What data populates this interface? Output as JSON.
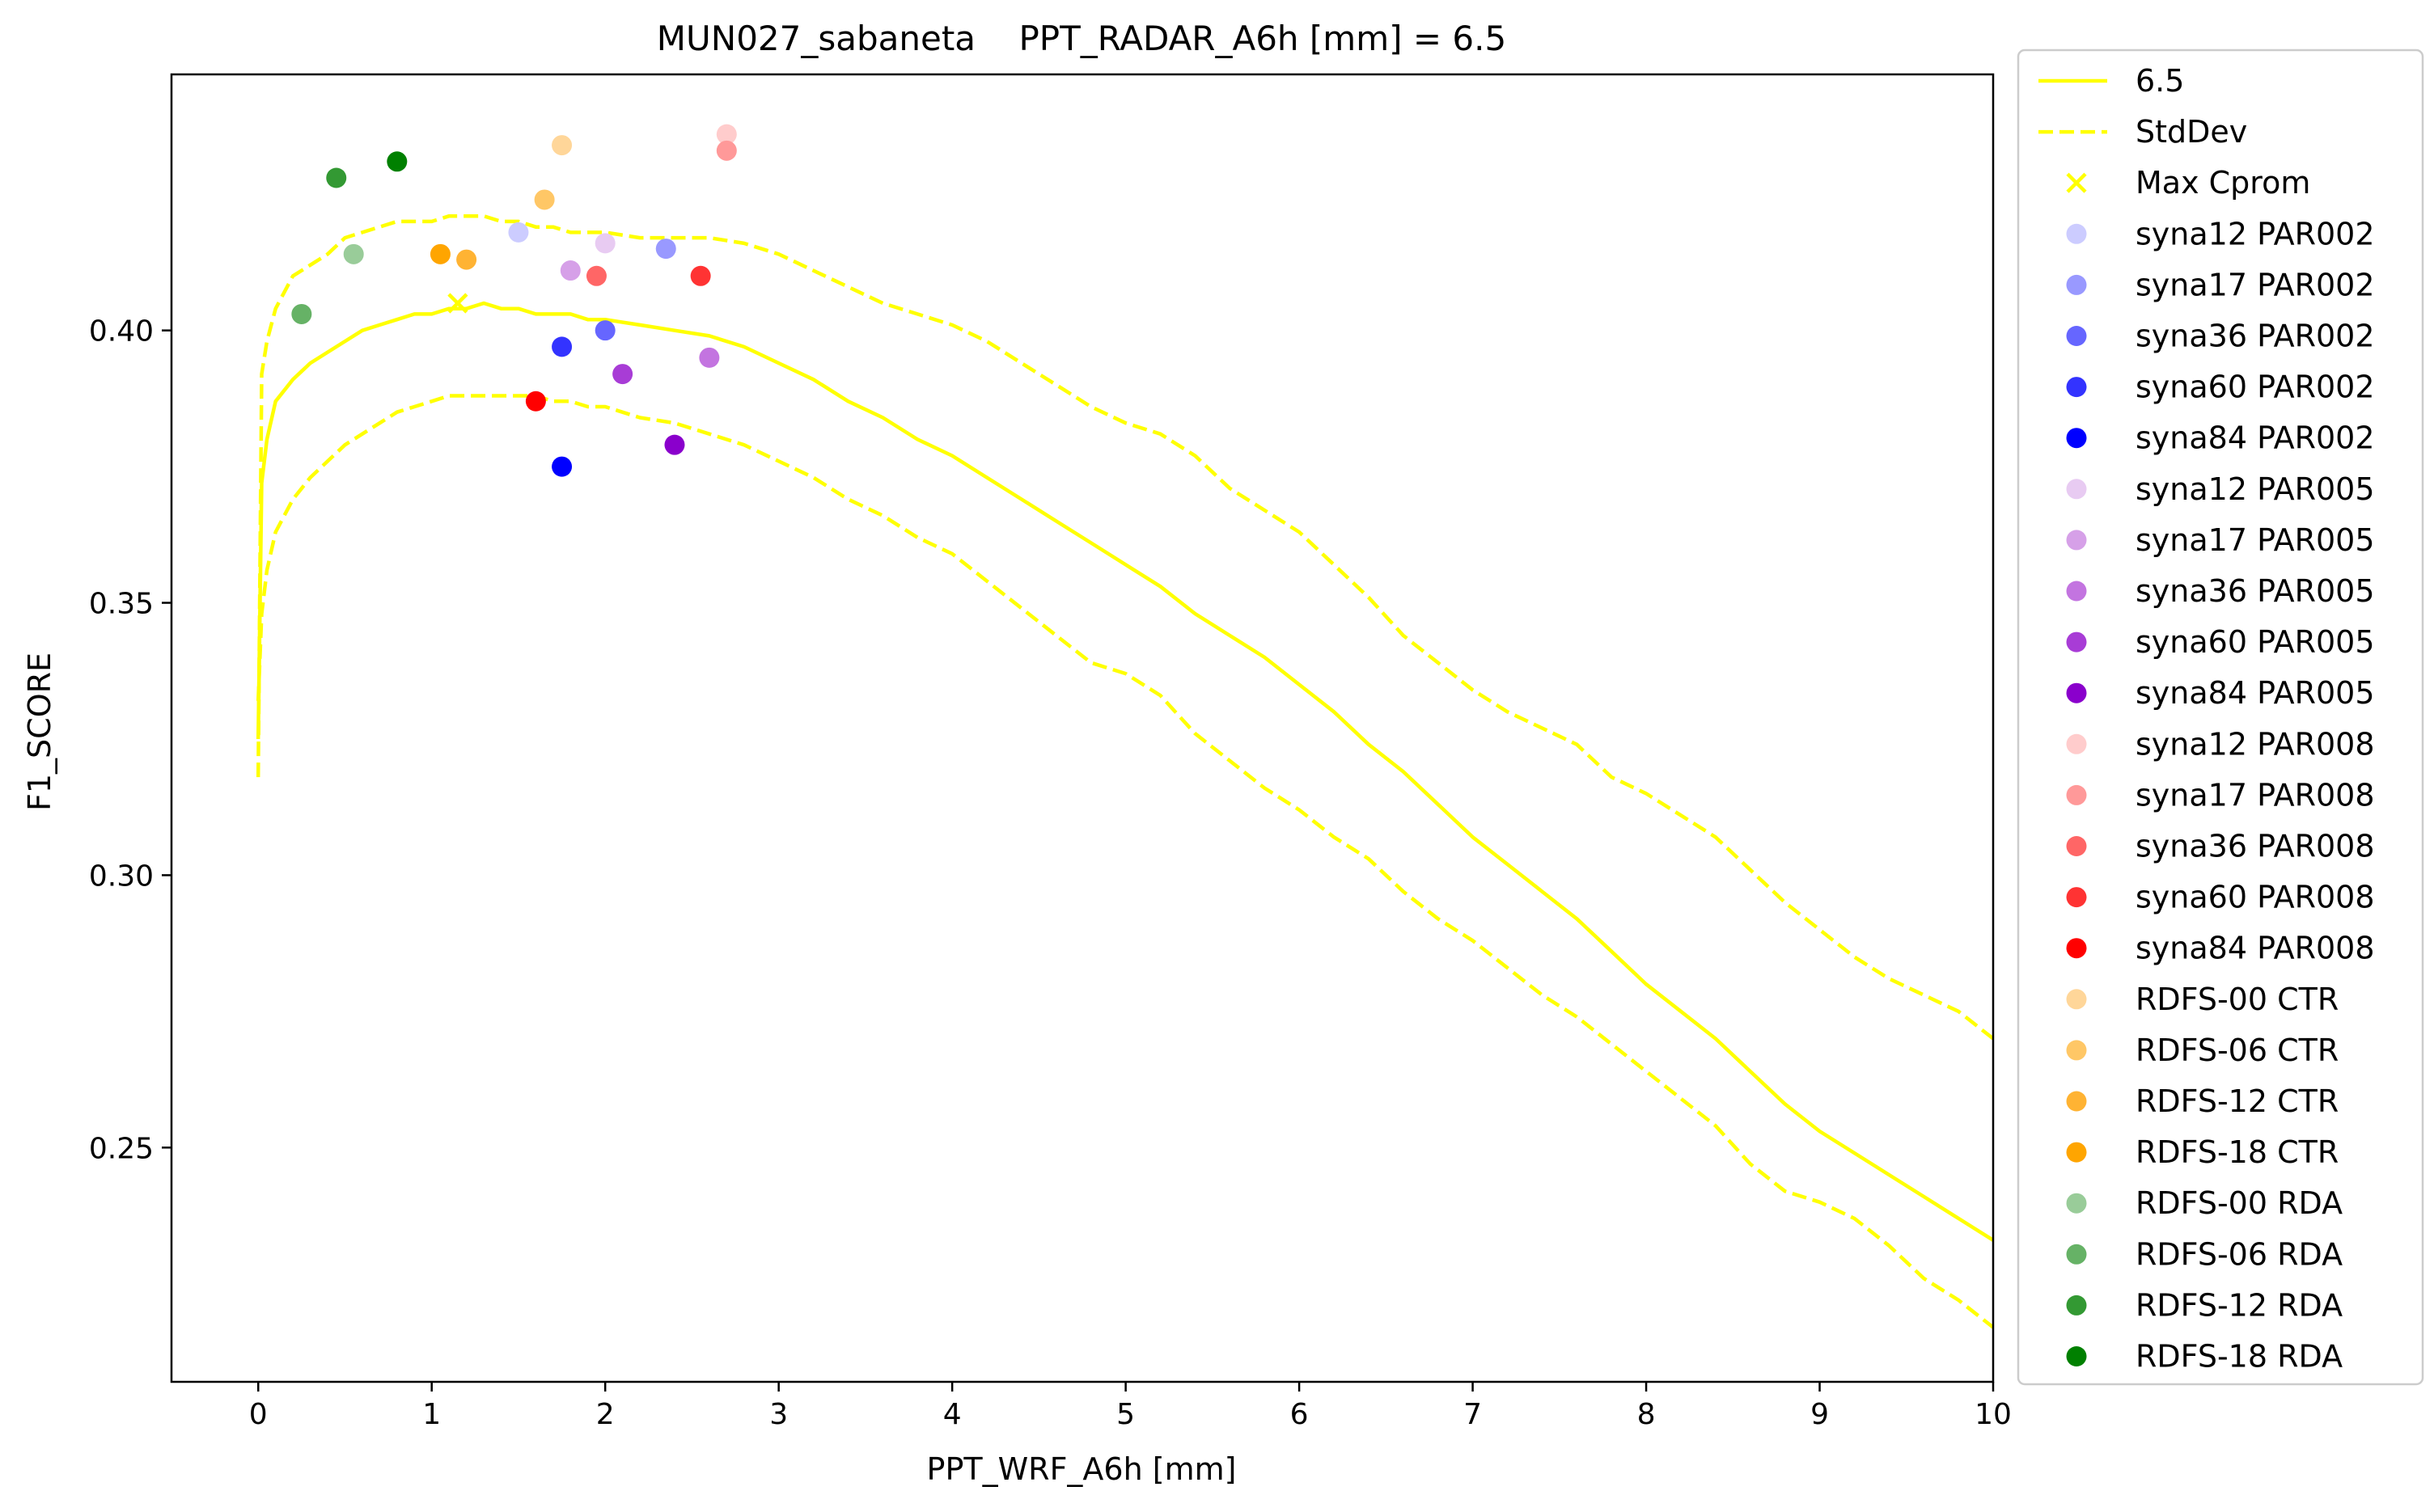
{
  "chart_data": {
    "type": "line",
    "title": "MUN027_sabaneta    PPT_RADAR_A6h [mm] = 6.5",
    "xlabel": "PPT_WRF_A6h [mm]",
    "ylabel": "F1_SCORE",
    "xlim": [
      -0.5,
      10
    ],
    "ylim": [
      0.207,
      0.447
    ],
    "xticks": [
      0,
      1,
      2,
      3,
      4,
      5,
      6,
      7,
      8,
      9,
      10
    ],
    "yticks": [
      0.25,
      0.3,
      0.35,
      0.4
    ],
    "xtick_labels": [
      "0",
      "1",
      "2",
      "3",
      "4",
      "5",
      "6",
      "7",
      "8",
      "9",
      "10"
    ],
    "ytick_labels": [
      "0.25",
      "0.30",
      "0.35",
      "0.40"
    ],
    "grid": false,
    "legend_position": "outside right",
    "lines": [
      {
        "name": "6.5",
        "color": "#ffff00",
        "style": "solid",
        "x": [
          0,
          0.02,
          0.05,
          0.1,
          0.2,
          0.3,
          0.4,
          0.5,
          0.6,
          0.7,
          0.8,
          0.9,
          1.0,
          1.1,
          1.2,
          1.3,
          1.4,
          1.5,
          1.6,
          1.7,
          1.8,
          1.9,
          2.0,
          2.2,
          2.4,
          2.6,
          2.8,
          3.0,
          3.2,
          3.4,
          3.6,
          3.8,
          4.0,
          4.2,
          4.4,
          4.6,
          4.8,
          5.0,
          5.2,
          5.4,
          5.6,
          5.8,
          6.0,
          6.2,
          6.4,
          6.6,
          6.8,
          7.0,
          7.2,
          7.4,
          7.6,
          7.8,
          8.0,
          8.2,
          8.4,
          8.6,
          8.8,
          9.0,
          9.2,
          9.4,
          9.6,
          9.8,
          10.0
        ],
        "y": [
          0.325,
          0.372,
          0.38,
          0.387,
          0.391,
          0.394,
          0.396,
          0.398,
          0.4,
          0.401,
          0.402,
          0.403,
          0.403,
          0.404,
          0.404,
          0.405,
          0.404,
          0.404,
          0.403,
          0.403,
          0.403,
          0.402,
          0.402,
          0.401,
          0.4,
          0.399,
          0.397,
          0.394,
          0.391,
          0.387,
          0.384,
          0.38,
          0.377,
          0.373,
          0.369,
          0.365,
          0.361,
          0.357,
          0.353,
          0.348,
          0.344,
          0.34,
          0.335,
          0.33,
          0.324,
          0.319,
          0.313,
          0.307,
          0.302,
          0.297,
          0.292,
          0.286,
          0.28,
          0.275,
          0.27,
          0.264,
          0.258,
          0.253,
          0.249,
          0.245,
          0.241,
          0.237,
          0.233
        ]
      },
      {
        "name": "StdDev",
        "color": "#ffff00",
        "style": "dashed",
        "x": [
          0,
          0.02,
          0.05,
          0.1,
          0.2,
          0.3,
          0.4,
          0.5,
          0.6,
          0.7,
          0.8,
          0.9,
          1.0,
          1.1,
          1.2,
          1.3,
          1.4,
          1.5,
          1.6,
          1.7,
          1.8,
          1.9,
          2.0,
          2.2,
          2.4,
          2.6,
          2.8,
          3.0,
          3.2,
          3.4,
          3.6,
          3.8,
          4.0,
          4.2,
          4.4,
          4.6,
          4.8,
          5.0,
          5.2,
          5.4,
          5.6,
          5.8,
          6.0,
          6.2,
          6.4,
          6.6,
          6.8,
          7.0,
          7.2,
          7.4,
          7.6,
          7.8,
          8.0,
          8.2,
          8.4,
          8.6,
          8.8,
          9.0,
          9.2,
          9.4,
          9.6,
          9.8,
          10.0
        ],
        "y": [
          0.318,
          0.392,
          0.398,
          0.404,
          0.41,
          0.412,
          0.414,
          0.417,
          0.418,
          0.419,
          0.42,
          0.42,
          0.42,
          0.421,
          0.421,
          0.421,
          0.42,
          0.42,
          0.419,
          0.419,
          0.418,
          0.418,
          0.418,
          0.417,
          0.417,
          0.417,
          0.416,
          0.414,
          0.411,
          0.408,
          0.405,
          0.403,
          0.401,
          0.398,
          0.394,
          0.39,
          0.386,
          0.383,
          0.381,
          0.377,
          0.371,
          0.367,
          0.363,
          0.357,
          0.351,
          0.344,
          0.339,
          0.334,
          0.33,
          0.327,
          0.324,
          0.318,
          0.315,
          0.311,
          0.307,
          0.301,
          0.295,
          0.29,
          0.285,
          0.281,
          0.278,
          0.275,
          0.27
        ]
      },
      {
        "name": "",
        "color": "#ffff00",
        "style": "dashed",
        "x": [
          0,
          0.02,
          0.05,
          0.1,
          0.2,
          0.3,
          0.4,
          0.5,
          0.6,
          0.7,
          0.8,
          0.9,
          1.0,
          1.1,
          1.2,
          1.3,
          1.4,
          1.5,
          1.6,
          1.7,
          1.8,
          1.9,
          2.0,
          2.2,
          2.4,
          2.6,
          2.8,
          3.0,
          3.2,
          3.4,
          3.6,
          3.8,
          4.0,
          4.2,
          4.4,
          4.6,
          4.8,
          5.0,
          5.2,
          5.4,
          5.6,
          5.8,
          6.0,
          6.2,
          6.4,
          6.6,
          6.8,
          7.0,
          7.2,
          7.4,
          7.6,
          7.8,
          8.0,
          8.2,
          8.4,
          8.6,
          8.8,
          9.0,
          9.2,
          9.4,
          9.6,
          9.8,
          10.0
        ],
        "y": [
          0.332,
          0.348,
          0.356,
          0.363,
          0.369,
          0.373,
          0.376,
          0.379,
          0.381,
          0.383,
          0.385,
          0.386,
          0.387,
          0.388,
          0.388,
          0.388,
          0.388,
          0.388,
          0.388,
          0.387,
          0.387,
          0.386,
          0.386,
          0.384,
          0.383,
          0.381,
          0.379,
          0.376,
          0.373,
          0.369,
          0.366,
          0.362,
          0.359,
          0.354,
          0.349,
          0.344,
          0.339,
          0.337,
          0.333,
          0.326,
          0.321,
          0.316,
          0.312,
          0.307,
          0.303,
          0.297,
          0.292,
          0.288,
          0.283,
          0.278,
          0.274,
          0.269,
          0.264,
          0.259,
          0.254,
          0.247,
          0.242,
          0.24,
          0.237,
          0.232,
          0.226,
          0.222,
          0.217
        ]
      }
    ],
    "max_point": {
      "name": "Max Cprom",
      "color": "#ffff00",
      "marker": "x",
      "x": 1.15,
      "y": 0.405
    },
    "scatter": [
      {
        "name": "syna12 PAR002",
        "color": "#ccccff",
        "x": 1.5,
        "y": 0.418
      },
      {
        "name": "syna17 PAR002",
        "color": "#9999ff",
        "x": 2.35,
        "y": 0.415
      },
      {
        "name": "syna36 PAR002",
        "color": "#6666ff",
        "x": 2.0,
        "y": 0.4
      },
      {
        "name": "syna60 PAR002",
        "color": "#3333ff",
        "x": 1.75,
        "y": 0.397
      },
      {
        "name": "syna84 PAR002",
        "color": "#0000ff",
        "x": 1.75,
        "y": 0.375
      },
      {
        "name": "syna12 PAR005",
        "color": "#e8cbf2",
        "x": 2.0,
        "y": 0.416
      },
      {
        "name": "syna17 PAR005",
        "color": "#d6a0e8",
        "x": 1.8,
        "y": 0.411
      },
      {
        "name": "syna36 PAR005",
        "color": "#c374e0",
        "x": 2.6,
        "y": 0.395
      },
      {
        "name": "syna60 PAR005",
        "color": "#a83cd6",
        "x": 2.1,
        "y": 0.392
      },
      {
        "name": "syna84 PAR005",
        "color": "#8a00cc",
        "x": 2.4,
        "y": 0.379
      },
      {
        "name": "syna12 PAR008",
        "color": "#ffcccc",
        "x": 2.7,
        "y": 0.436
      },
      {
        "name": "syna17 PAR008",
        "color": "#ff9999",
        "x": 2.7,
        "y": 0.433
      },
      {
        "name": "syna36 PAR008",
        "color": "#ff6666",
        "x": 1.95,
        "y": 0.41
      },
      {
        "name": "syna60 PAR008",
        "color": "#ff3333",
        "x": 2.55,
        "y": 0.41
      },
      {
        "name": "syna84 PAR008",
        "color": "#ff0000",
        "x": 1.6,
        "y": 0.387
      },
      {
        "name": "RDFS-00 CTR",
        "color": "#ffd699",
        "x": 1.75,
        "y": 0.434
      },
      {
        "name": "RDFS-06 CTR",
        "color": "#ffc766",
        "x": 1.65,
        "y": 0.424
      },
      {
        "name": "RDFS-12 CTR",
        "color": "#ffb333",
        "x": 1.2,
        "y": 0.413
      },
      {
        "name": "RDFS-18 CTR",
        "color": "#ffa500",
        "x": 1.05,
        "y": 0.414
      },
      {
        "name": "RDFS-00 RDA",
        "color": "#99cc99",
        "x": 0.55,
        "y": 0.414
      },
      {
        "name": "RDFS-06 RDA",
        "color": "#66b266",
        "x": 0.25,
        "y": 0.403
      },
      {
        "name": "RDFS-12 RDA",
        "color": "#339933",
        "x": 0.45,
        "y": 0.428
      },
      {
        "name": "RDFS-18 RDA",
        "color": "#008000",
        "x": 0.8,
        "y": 0.431
      }
    ]
  }
}
